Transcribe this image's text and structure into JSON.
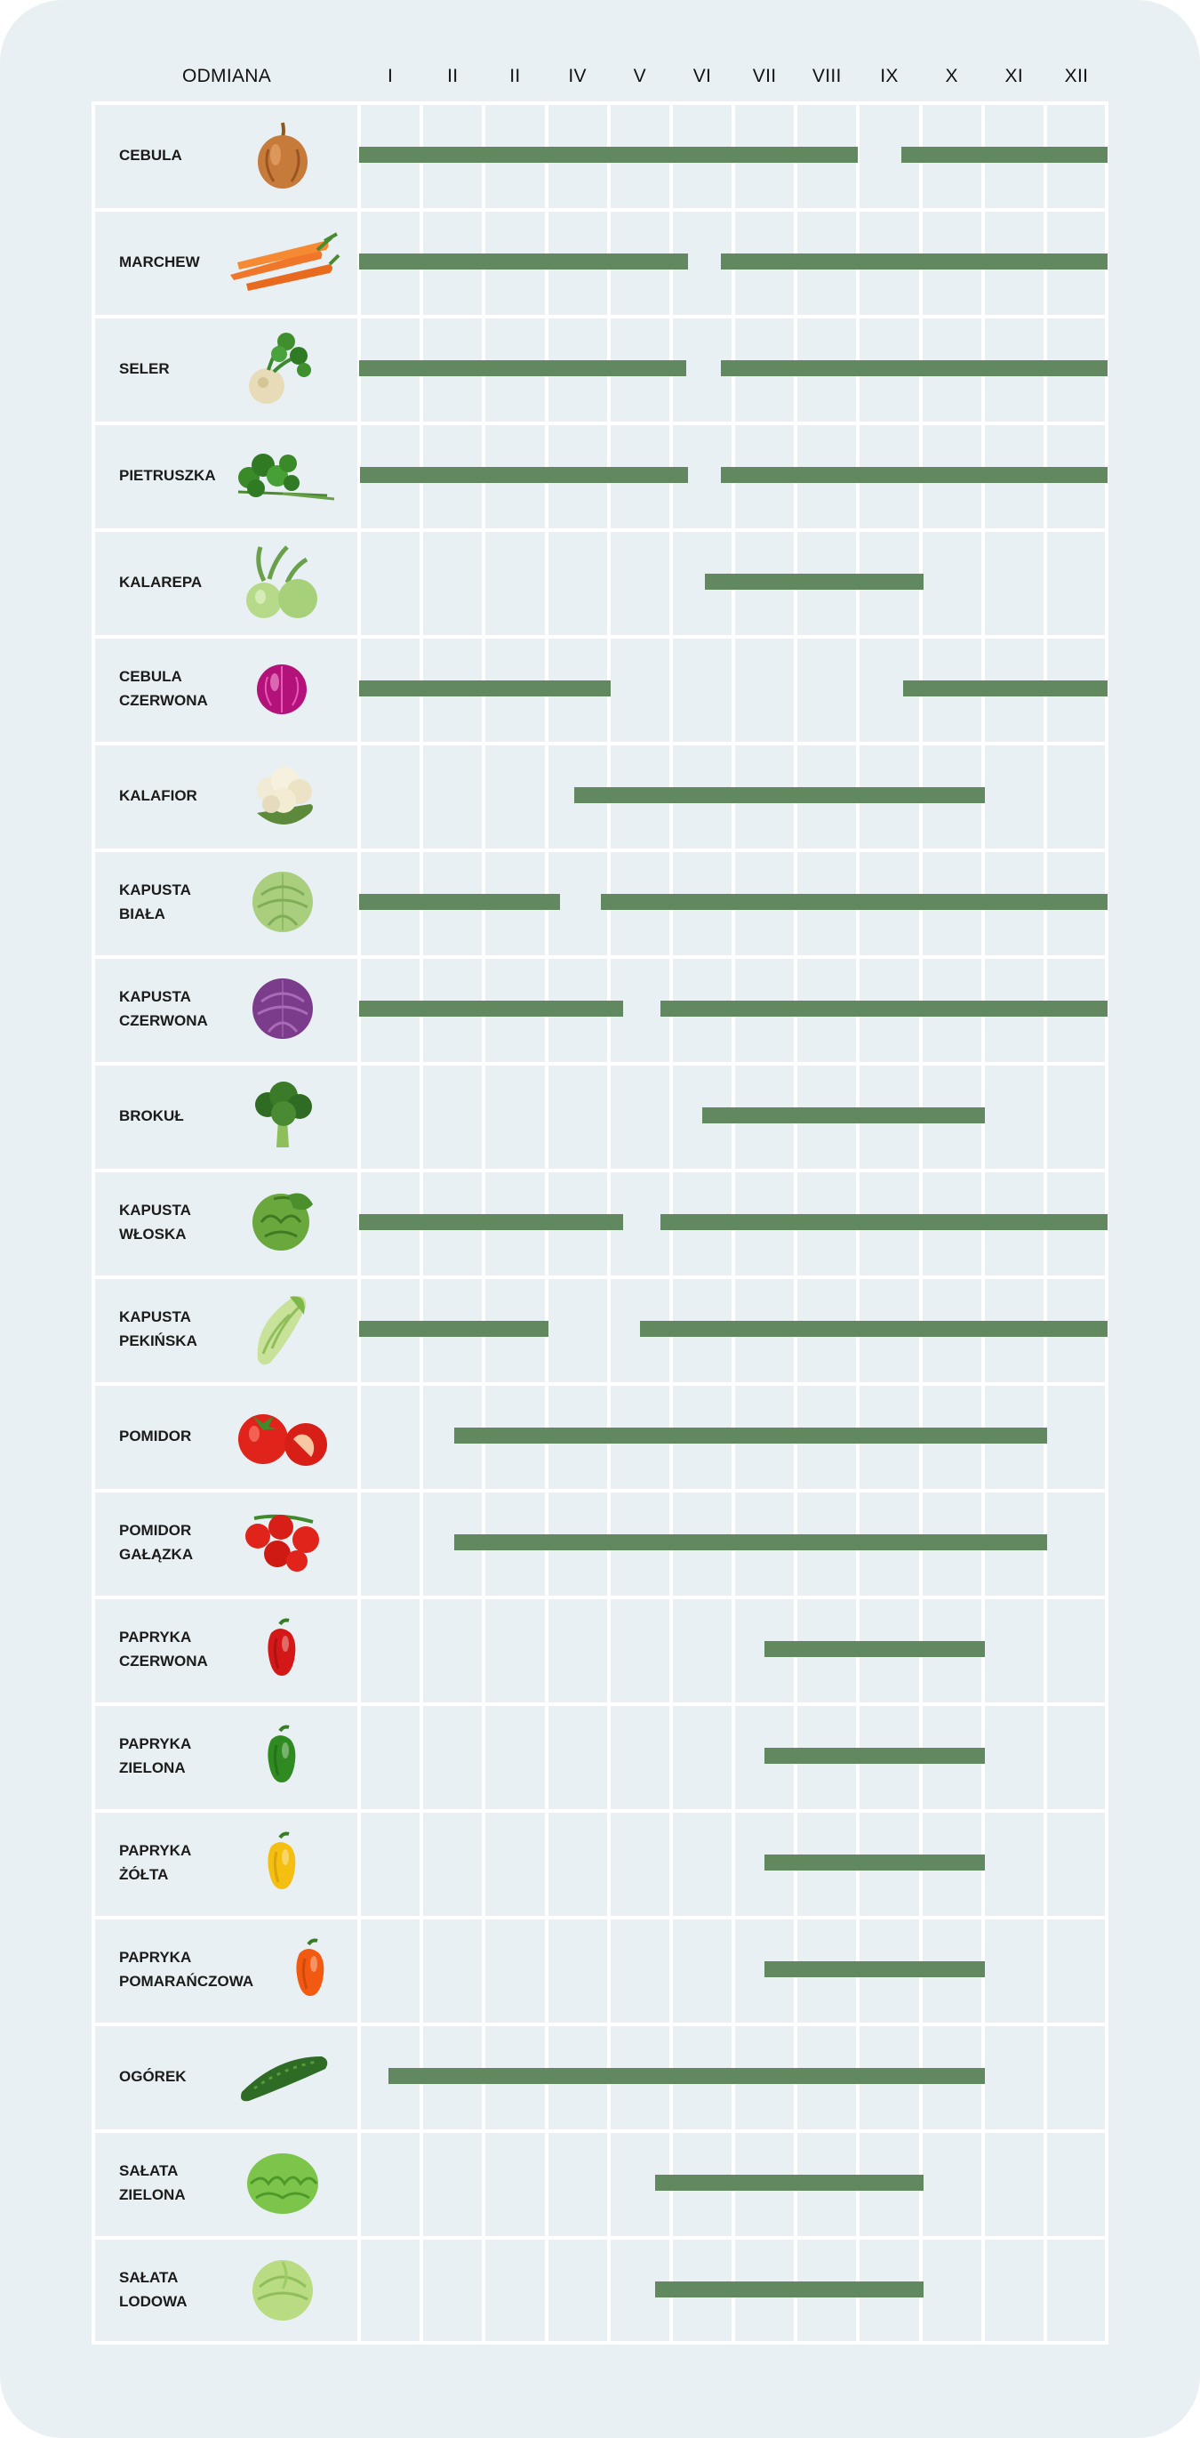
{
  "chart_data": {
    "type": "gantt",
    "title": "",
    "header_label": "ODMIANA",
    "months": [
      "I",
      "II",
      "II",
      "IV",
      "V",
      "VI",
      "VII",
      "VIII",
      "IX",
      "X",
      "XI",
      "XII"
    ],
    "xlim": [
      0,
      12
    ],
    "colors": {
      "bar": "#62885f",
      "background": "#e9f0f3",
      "grid": "#ffffff"
    },
    "rows": [
      {
        "name": [
          "CEBULA"
        ],
        "icon": "onion-icon",
        "ranges": [
          [
            0,
            8.0
          ],
          [
            8.7,
            12
          ]
        ]
      },
      {
        "name": [
          "MARCHEW"
        ],
        "icon": "carrot-icon",
        "ranges": [
          [
            0,
            5.27
          ],
          [
            5.8,
            12
          ]
        ]
      },
      {
        "name": [
          "SELER"
        ],
        "icon": "celery-icon",
        "ranges": [
          [
            0,
            5.25
          ],
          [
            5.8,
            12
          ]
        ]
      },
      {
        "name": [
          "PIETRUSZKA"
        ],
        "icon": "parsley-icon",
        "ranges": [
          [
            0.02,
            5.27
          ],
          [
            5.8,
            12
          ]
        ]
      },
      {
        "name": [
          "KALAREPA"
        ],
        "icon": "kohlrabi-icon",
        "ranges": [
          [
            5.55,
            9.05
          ]
        ]
      },
      {
        "name": [
          "CEBULA",
          "CZERWONA"
        ],
        "icon": "red-onion-icon",
        "ranges": [
          [
            0,
            4.03
          ],
          [
            8.72,
            12
          ]
        ]
      },
      {
        "name": [
          "KALAFIOR"
        ],
        "icon": "cauliflower-icon",
        "ranges": [
          [
            3.45,
            10.03
          ]
        ]
      },
      {
        "name": [
          "KAPUSTA",
          "BIAŁA"
        ],
        "icon": "white-cabbage-icon",
        "ranges": [
          [
            0,
            3.22
          ],
          [
            3.87,
            12
          ]
        ]
      },
      {
        "name": [
          "KAPUSTA",
          "CZERWONA"
        ],
        "icon": "red-cabbage-icon",
        "ranges": [
          [
            0,
            4.23
          ],
          [
            4.83,
            12
          ]
        ]
      },
      {
        "name": [
          "BROKUŁ"
        ],
        "icon": "broccoli-icon",
        "ranges": [
          [
            5.5,
            10.03
          ]
        ]
      },
      {
        "name": [
          "KAPUSTA",
          "WŁOSKA"
        ],
        "icon": "savoy-cabbage-icon",
        "ranges": [
          [
            0,
            4.23
          ],
          [
            4.83,
            12
          ]
        ]
      },
      {
        "name": [
          "KAPUSTA",
          "PEKIŃSKA"
        ],
        "icon": "napa-cabbage-icon",
        "ranges": [
          [
            0,
            3.03
          ],
          [
            4.5,
            12
          ]
        ]
      },
      {
        "name": [
          "POMIDOR"
        ],
        "icon": "tomato-icon",
        "ranges": [
          [
            1.53,
            11.03
          ]
        ]
      },
      {
        "name": [
          "POMIDOR",
          "GAŁĄZKA"
        ],
        "icon": "vine-tomato-icon",
        "ranges": [
          [
            1.53,
            11.03
          ]
        ]
      },
      {
        "name": [
          "PAPRYKA",
          "CZERWONA"
        ],
        "icon": "red-pepper-icon",
        "ranges": [
          [
            6.5,
            10.03
          ]
        ]
      },
      {
        "name": [
          "PAPRYKA",
          "ZIELONA"
        ],
        "icon": "green-pepper-icon",
        "ranges": [
          [
            6.5,
            10.03
          ]
        ]
      },
      {
        "name": [
          "PAPRYKA",
          "ŻÓŁTA"
        ],
        "icon": "yellow-pepper-icon",
        "ranges": [
          [
            6.5,
            10.03
          ]
        ]
      },
      {
        "name": [
          "PAPRYKA",
          "POMARAŃCZOWA"
        ],
        "icon": "orange-pepper-icon",
        "ranges": [
          [
            6.5,
            10.03
          ]
        ]
      },
      {
        "name": [
          "OGÓREK"
        ],
        "icon": "cucumber-icon",
        "ranges": [
          [
            0.47,
            10.03
          ]
        ]
      },
      {
        "name": [
          "SAŁATA",
          "ZIELONA"
        ],
        "icon": "green-lettuce-icon",
        "ranges": [
          [
            4.75,
            9.05
          ]
        ]
      },
      {
        "name": [
          "SAŁATA",
          "LODOWA"
        ],
        "icon": "iceberg-lettuce-icon",
        "ranges": [
          [
            4.75,
            9.05
          ]
        ]
      }
    ]
  }
}
